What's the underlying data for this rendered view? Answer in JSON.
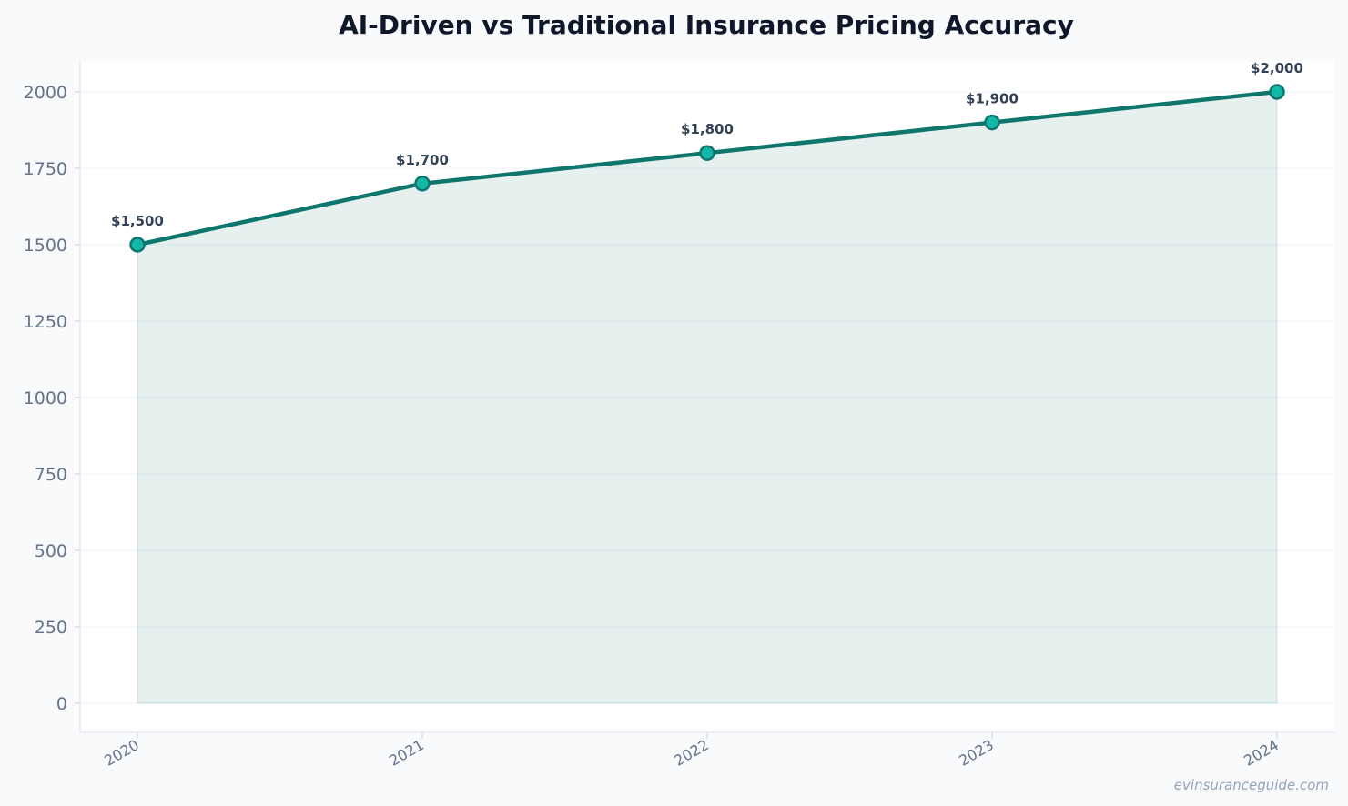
{
  "chart_data": {
    "type": "area",
    "title": "AI-Driven vs Traditional Insurance Pricing Accuracy",
    "xlabel": "",
    "ylabel": "",
    "categories": [
      "2020",
      "2021",
      "2022",
      "2023",
      "2024"
    ],
    "series": [
      {
        "values": [
          1500,
          1700,
          1800,
          1900,
          2000
        ],
        "labels": [
          "$1,500",
          "$1,700",
          "$1,800",
          "$1,900",
          "$2,000"
        ]
      }
    ],
    "ylim": [
      -95,
      2100
    ],
    "yticks": [
      0,
      250,
      500,
      750,
      1000,
      1250,
      1500,
      1750,
      2000
    ],
    "grid": true,
    "legend": "none",
    "colors": {
      "line": "#0f766e",
      "marker_fill": "#14b8a6",
      "area_fill": "#0f766e",
      "grid": "#f1f5f9"
    }
  },
  "watermark": "evinsuranceguide.com"
}
